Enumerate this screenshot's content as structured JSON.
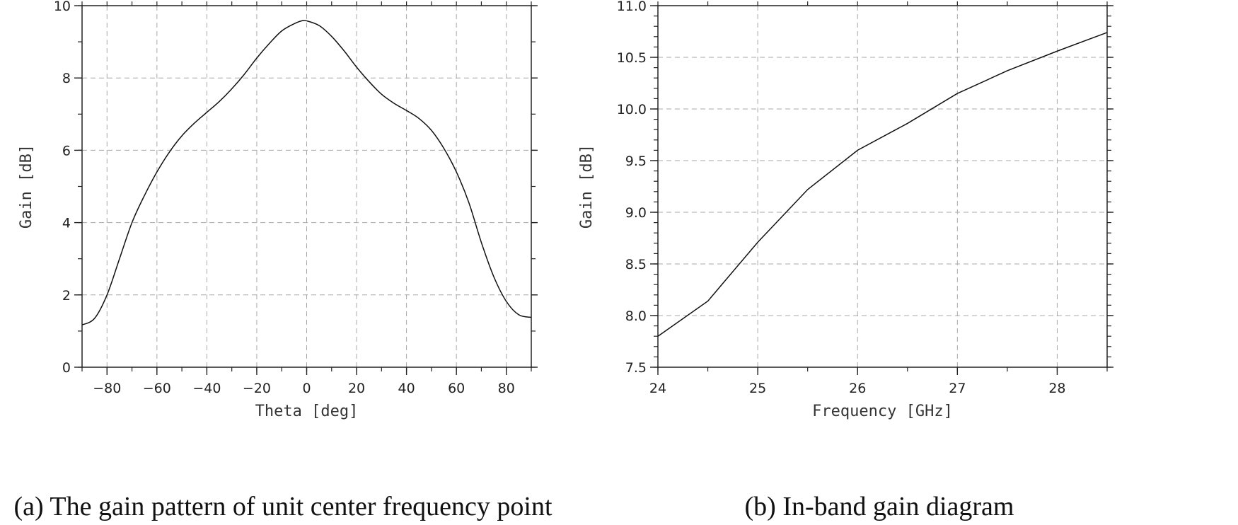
{
  "chart_data": [
    {
      "type": "line",
      "caption": "(a) The gain pattern of unit center frequency point",
      "xlabel": "Theta [deg]",
      "ylabel": "Gain [dB]",
      "xlim": [
        -90,
        90
      ],
      "ylim": [
        0,
        10
      ],
      "xticks": [
        -80,
        -60,
        -40,
        -20,
        0,
        20,
        40,
        60,
        80
      ],
      "xtick_labels": [
        "−80",
        "−60",
        "−40",
        "−20",
        "0",
        "20",
        "40",
        "60",
        "80"
      ],
      "xminor": 10,
      "yticks": [
        0,
        2,
        4,
        6,
        8,
        10
      ],
      "ytick_labels": [
        "0",
        "2",
        "4",
        "6",
        "8",
        "10"
      ],
      "yminor": 1,
      "grid": true,
      "x": [
        -90,
        -85,
        -80,
        -75,
        -70,
        -65,
        -60,
        -55,
        -50,
        -45,
        -40,
        -35,
        -30,
        -25,
        -20,
        -15,
        -10,
        -5,
        -2,
        0,
        5,
        10,
        15,
        20,
        25,
        30,
        35,
        40,
        45,
        50,
        55,
        60,
        65,
        70,
        75,
        80,
        85,
        90
      ],
      "series": [
        {
          "values": [
            1.17,
            1.35,
            2.0,
            3.0,
            4.0,
            4.75,
            5.4,
            5.95,
            6.4,
            6.75,
            7.05,
            7.35,
            7.7,
            8.1,
            8.55,
            8.95,
            9.3,
            9.5,
            9.58,
            9.58,
            9.45,
            9.15,
            8.75,
            8.3,
            7.9,
            7.55,
            7.3,
            7.1,
            6.88,
            6.55,
            6.05,
            5.4,
            4.55,
            3.45,
            2.5,
            1.82,
            1.45,
            1.38
          ],
          "color": "#111111"
        }
      ]
    },
    {
      "type": "line",
      "caption": "(b) In-band gain diagram",
      "xlabel": "Frequency [GHz]",
      "ylabel": "Gain [dB]",
      "xlim": [
        24,
        28.5
      ],
      "ylim": [
        7.5,
        11.0
      ],
      "xticks": [
        24,
        25,
        26,
        27,
        28
      ],
      "xtick_labels": [
        "24",
        "25",
        "26",
        "27",
        "28"
      ],
      "xminor": 0.5,
      "yticks": [
        7.5,
        8.0,
        8.5,
        9.0,
        9.5,
        10.0,
        10.5,
        11.0
      ],
      "ytick_labels": [
        "7.5",
        "8.0",
        "8.5",
        "9.0",
        "9.5",
        "10.0",
        "10.5",
        "11.0"
      ],
      "yminor": 0.1,
      "grid": true,
      "x": [
        24.0,
        24.5,
        25.0,
        25.5,
        26.0,
        26.5,
        27.0,
        27.5,
        28.0,
        28.5
      ],
      "series": [
        {
          "values": [
            7.8,
            8.14,
            8.71,
            9.22,
            9.6,
            9.86,
            10.15,
            10.37,
            10.56,
            10.74
          ],
          "color": "#111111"
        }
      ]
    }
  ]
}
